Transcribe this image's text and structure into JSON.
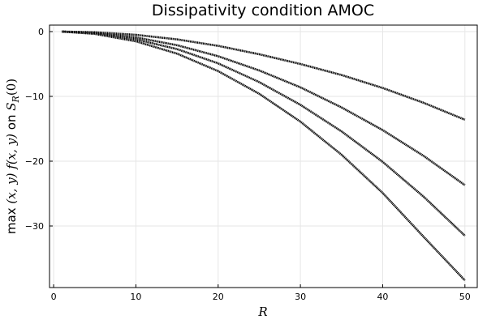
{
  "chart_data": {
    "type": "line",
    "title": "Dissipativity condition AMOC",
    "xlabel": "R",
    "ylabel": "max (x,y) f(x,y) on S_R(0)",
    "ylabel_parts": {
      "prefix": "max ",
      "math": "(x, y) f(x, y)",
      "on": " on ",
      "set": "S",
      "sub": "R",
      "arg": "(0)"
    },
    "xlim": [
      -0.5,
      51.5
    ],
    "ylim": [
      -39.5,
      1.0
    ],
    "x_ticks": [
      0,
      10,
      20,
      30,
      40,
      50
    ],
    "y_ticks": [
      0,
      -10,
      -20,
      -30
    ],
    "grid": true,
    "legend": "none",
    "series": [
      {
        "x": [
          1,
          5,
          10,
          15,
          20,
          25,
          30,
          35,
          40,
          45,
          50
        ],
        "values": [
          0.0,
          -0.1,
          -0.5,
          -1.2,
          -2.2,
          -3.5,
          -5.0,
          -6.7,
          -8.7,
          -11.0,
          -13.6
        ]
      },
      {
        "x": [
          1,
          5,
          10,
          15,
          20,
          25,
          30,
          35,
          40,
          45,
          50
        ],
        "values": [
          0.0,
          -0.2,
          -0.9,
          -2.1,
          -3.8,
          -6.0,
          -8.6,
          -11.7,
          -15.2,
          -19.2,
          -23.7
        ]
      },
      {
        "x": [
          1,
          5,
          10,
          15,
          20,
          25,
          30,
          35,
          40,
          45,
          50
        ],
        "values": [
          0.0,
          -0.25,
          -1.2,
          -2.7,
          -4.9,
          -7.8,
          -11.3,
          -15.4,
          -20.1,
          -25.5,
          -31.5
        ]
      },
      {
        "x": [
          1,
          5,
          10,
          15,
          20,
          25,
          30,
          35,
          40,
          45,
          50
        ],
        "values": [
          0.0,
          -0.35,
          -1.5,
          -3.4,
          -6.1,
          -9.6,
          -13.9,
          -19.0,
          -24.9,
          -31.7,
          -38.4
        ]
      }
    ]
  }
}
